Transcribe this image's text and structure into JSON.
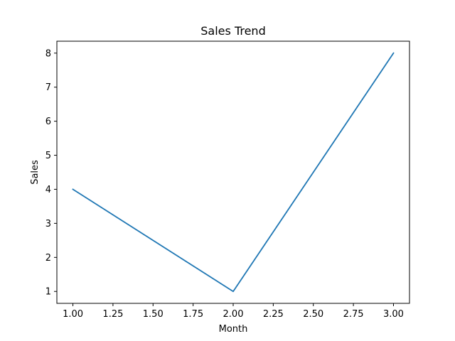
{
  "chart_data": {
    "type": "line",
    "title": "Sales Trend",
    "xlabel": "Month",
    "ylabel": "Sales",
    "x": [
      1,
      2,
      3
    ],
    "series": [
      {
        "values": [
          4,
          1,
          8
        ],
        "color": "#1f77b4"
      }
    ],
    "xlim": [
      0.9,
      3.1
    ],
    "ylim": [
      0.65,
      8.35
    ],
    "xticks": [
      1.0,
      1.25,
      1.5,
      1.75,
      2.0,
      2.25,
      2.5,
      2.75,
      3.0
    ],
    "xtick_labels": [
      "1.00",
      "1.25",
      "1.50",
      "1.75",
      "2.00",
      "2.25",
      "2.50",
      "2.75",
      "3.00"
    ],
    "yticks": [
      1,
      2,
      3,
      4,
      5,
      6,
      7,
      8
    ],
    "ytick_labels": [
      "1",
      "2",
      "3",
      "4",
      "5",
      "6",
      "7",
      "8"
    ],
    "grid": false,
    "legend": "none"
  }
}
